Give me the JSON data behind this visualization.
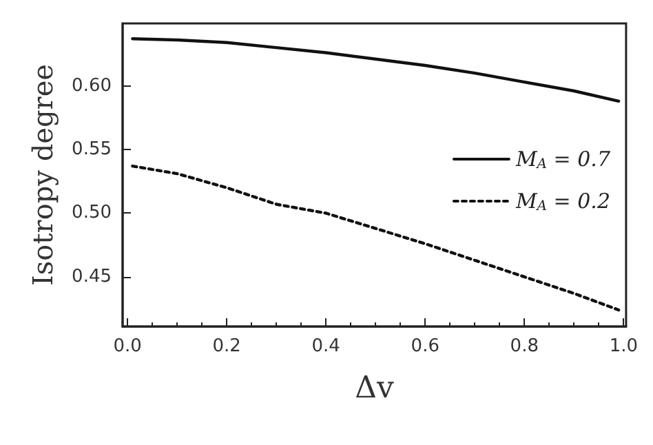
{
  "chart_data": {
    "type": "line",
    "xlabel": "Δv",
    "ylabel": "Isotropy degree",
    "xlim": [
      -0.01,
      1.005
    ],
    "ylim": [
      0.411,
      0.649
    ],
    "xticks": [
      {
        "value": 0,
        "label": "0.0"
      },
      0.2,
      0.4,
      0.6,
      0.8,
      {
        "value": 1,
        "label": "1.0"
      }
    ],
    "yticks": [
      0.45,
      {
        "value": 0.5,
        "label": "0.50"
      },
      0.55,
      {
        "value": 0.6,
        "label": "0.60"
      }
    ],
    "x": [
      0.01,
      0.1,
      0.2,
      0.3,
      0.4,
      0.5,
      0.6,
      0.7,
      0.8,
      0.9,
      0.99
    ],
    "legend": "right",
    "grid": false,
    "marker": "none",
    "series": [
      {
        "name": "M$_{A}$ = 0.7",
        "color": "#111111",
        "line_style": "solid",
        "values": [
          0.637,
          0.636,
          0.634,
          0.63,
          0.626,
          0.621,
          0.616,
          0.61,
          0.603,
          0.596,
          0.588
        ]
      },
      {
        "name": "M$_{A}$ = 0.2",
        "color": "#111111",
        "line_style": "dotted",
        "values": [
          0.537,
          0.531,
          0.52,
          0.507,
          0.5,
          0.488,
          0.476,
          0.463,
          0.45,
          0.437,
          0.424
        ]
      }
    ]
  }
}
